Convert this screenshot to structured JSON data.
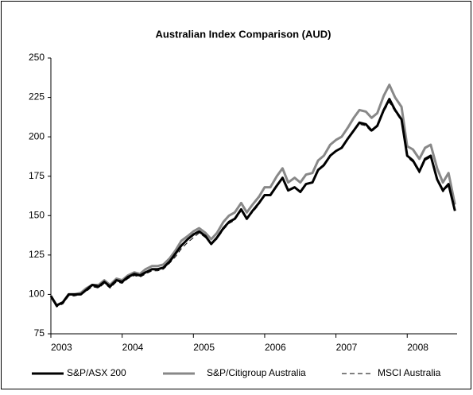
{
  "chart_data": {
    "type": "line",
    "title": "Australian Index Comparison (AUD)",
    "x": [
      2003.0,
      2003.08,
      2003.17,
      2003.25,
      2003.33,
      2003.42,
      2003.5,
      2003.58,
      2003.67,
      2003.75,
      2003.83,
      2003.92,
      2004.0,
      2004.08,
      2004.17,
      2004.25,
      2004.33,
      2004.42,
      2004.5,
      2004.58,
      2004.67,
      2004.75,
      2004.83,
      2004.92,
      2005.0,
      2005.08,
      2005.17,
      2005.25,
      2005.33,
      2005.42,
      2005.5,
      2005.58,
      2005.67,
      2005.75,
      2005.83,
      2005.92,
      2006.0,
      2006.08,
      2006.17,
      2006.25,
      2006.33,
      2006.42,
      2006.5,
      2006.58,
      2006.67,
      2006.75,
      2006.83,
      2006.92,
      2007.0,
      2007.08,
      2007.17,
      2007.25,
      2007.33,
      2007.42,
      2007.5,
      2007.58,
      2007.67,
      2007.75,
      2007.83,
      2007.92,
      2008.0,
      2008.08,
      2008.17,
      2008.25,
      2008.33,
      2008.42,
      2008.5,
      2008.58,
      2008.67
    ],
    "series": [
      {
        "name": "S&P/ASX 200",
        "color": "#000000",
        "width": 3,
        "dashed": false,
        "values": [
          99,
          93,
          95,
          100,
          100,
          100,
          103,
          106,
          105,
          108,
          105,
          109,
          108,
          111,
          113,
          112,
          114,
          116,
          116,
          117,
          121,
          126,
          131,
          135,
          138,
          140,
          137,
          132,
          136,
          142,
          146,
          148,
          154,
          148,
          153,
          158,
          163,
          163,
          169,
          174,
          166,
          168,
          165,
          170,
          171,
          179,
          182,
          188,
          191,
          193,
          199,
          204,
          209,
          208,
          204,
          207,
          217,
          224,
          217,
          211,
          188,
          185,
          178,
          186,
          188,
          173,
          166,
          170,
          153
        ]
      },
      {
        "name": "S&P/Citigroup Australia",
        "color": "#888888",
        "width": 3,
        "dashed": false,
        "values": [
          99,
          93,
          95,
          100,
          100,
          101,
          104,
          106,
          106,
          109,
          106,
          110,
          109,
          112,
          114,
          113,
          116,
          118,
          118,
          119,
          123,
          128,
          134,
          137,
          140,
          142,
          139,
          135,
          139,
          146,
          150,
          152,
          158,
          152,
          157,
          162,
          168,
          168,
          175,
          180,
          171,
          174,
          171,
          176,
          177,
          185,
          188,
          195,
          198,
          200,
          206,
          212,
          217,
          216,
          212,
          215,
          226,
          233,
          225,
          219,
          194,
          192,
          186,
          193,
          195,
          180,
          171,
          177,
          157
        ]
      },
      {
        "name": "MSCI Australia",
        "color": "#000000",
        "width": 1,
        "dashed": true,
        "values": [
          98,
          92,
          94,
          99,
          99,
          100,
          102,
          105,
          104,
          107,
          104,
          108,
          107,
          110,
          112,
          111,
          113,
          115,
          115,
          116,
          120,
          124,
          129,
          133,
          136,
          139,
          136,
          132,
          135,
          141,
          145,
          147,
          153,
          148,
          152,
          157,
          163,
          163,
          169,
          174,
          166,
          168,
          165,
          170,
          171,
          179,
          183,
          188,
          191,
          193,
          199,
          204,
          208,
          207,
          203,
          207,
          216,
          222,
          216,
          210,
          187,
          184,
          177,
          185,
          187,
          172,
          165,
          169,
          153
        ]
      }
    ],
    "xlim": [
      2003,
      2008.7
    ],
    "xticks": [
      2003,
      2004,
      2005,
      2006,
      2007,
      2008
    ],
    "ylim": [
      75,
      250
    ],
    "yticks": [
      75,
      100,
      125,
      150,
      175,
      200,
      225,
      250
    ],
    "grid": false,
    "legend": "bottom"
  }
}
